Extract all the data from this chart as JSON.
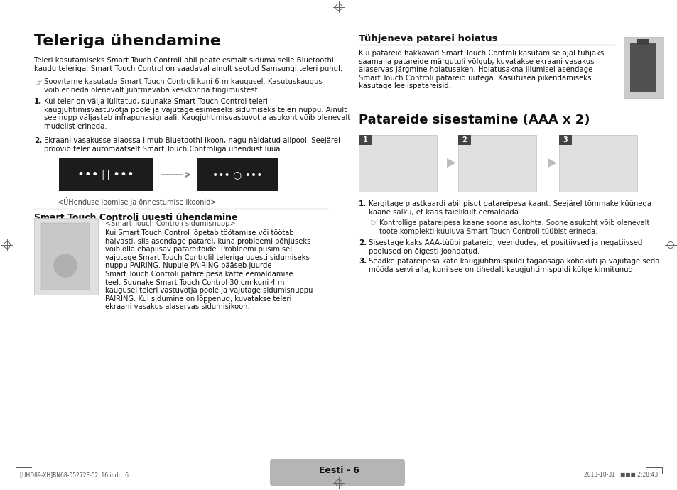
{
  "bg_color": "#ffffff",
  "text_color": "#111111",
  "gray_text": "#555555",
  "left_title": "Teleriga ühendamine",
  "left_body1": "Teleri kasutamiseks Smart Touch Controli abil peate esmalt siduma selle Bluetoothi\nkaudu teleriga. Smart Touch Control on saadaval ainult seotud Samsungi teleri puhul.",
  "left_note": "Soovitame kasutada Smart Touch Controli kuni 6 m kaugusel. Kasutuskaugus\nvõib erineda olenevalt juhtmevaba keskkonna tingimustest.",
  "left_item1": "Kui teler on välja lülitatud, suunake Smart Touch Control teleri\nkaugjuhtimisvastuvotja poole ja vajutage esimeseks sidumiseks teleri nuppu. Ainult\nsee nupp väljastab infrapunasignaali. Kaugjuhtimisvastuvotja asukoht võib olenevalt\nmudelist erineda.",
  "left_item2": "Ekraani vasakusse alaossa ilmub Bluetoothi ikoon, nagu näidatud allpool. Seejärel\nproovib teler automaatselt Smart Touch Controliga ühendust luua.",
  "left_caption": "<ÜHenduse loomise ja õnnestumise ikoonid>",
  "left_subtitle": "Smart Touch Controli uuesti ühendamine",
  "left_sub_caption": "<Smart Touch Controli sidumisnupp>",
  "left_sub_body": "Kui Smart Touch Control lõpetab töötamise või töötab\nhalvasti, siis asendage patarei, kuna probleemi põhjuseks\nvõib olla ebapiisav patareitoide. Probleemi püsimisel\nvajutage Smart Touch Controlil teleriga uuesti sidumiseks\nnuppu PAIRING. Nupule PAIRING pääseb juurde\nSmart Touch Controli patareipesa katte eemaldamise\nteel. Suunake Smart Touch Control 30 cm kuni 4 m\nkaugusel teleri vastuvotja poole ja vajutage sidumisnuppu\nPAIRING. Kui sidumine on lõppenud, kuvatakse teleri\nekraani vasakus alaservas sidumisikoon.",
  "right_title1": "Tühjeneva patarei hoiatus",
  "right_body1": "Kui patareid hakkavad Smart Touch Controli kasutamise ajal tühjaks\nsaama ja patareide märgutuli võlgub, kuvatakse ekraani vasakus\nalaservas järgmine hoiatusaken. Hoiatusakna illumisel asendage\nSmart Touch Controli patareid uutega. Kasutusea pikendamiseks\nkasutage leelispatareisid.",
  "right_title2": "Patareide sisestamine (AAA x 2)",
  "right_item1": "Kergitage plastkaardi abil pisut patareipesa kaant. Seejärel tõmmake küünega\nkaane sälku, et kaas täielikult eemaldada.",
  "right_note": "Kontrollige patareipesa kaane soone asukohta. Soone asukoht võib olenevalt\ntoote komplekti kuuluva Smart Touch Controli tüübist erineda.",
  "right_item2": "Sisestage kaks AAA-tüüpi patareid, veendudes, et positiivsed ja negatiivsed\npoolused on õigesti joondatud.",
  "right_item3": "Seadke patareipesa kate kaugjuhtimispuldi tagaosaga kohakuti ja vajutage seda\nmööda servi alla, kuni see on tihedalt kaugjuhtimispuldi külge kinnitunud.",
  "footer_label": "Eesti - 6",
  "footer_left": "[UHD89-XH]BN68-05272F-02L16.indb  6",
  "footer_right": "2013-10-31   ■■■ 2:28:43",
  "crosshair_color": "#666666",
  "divider_color": "#dddddd",
  "dark_box_color": "#1c1c1c",
  "footer_bg": "#b5b5b5",
  "img_placeholder": "#e0e0e0",
  "img_edge": "#c0c0c0",
  "label_bg": "#444444"
}
